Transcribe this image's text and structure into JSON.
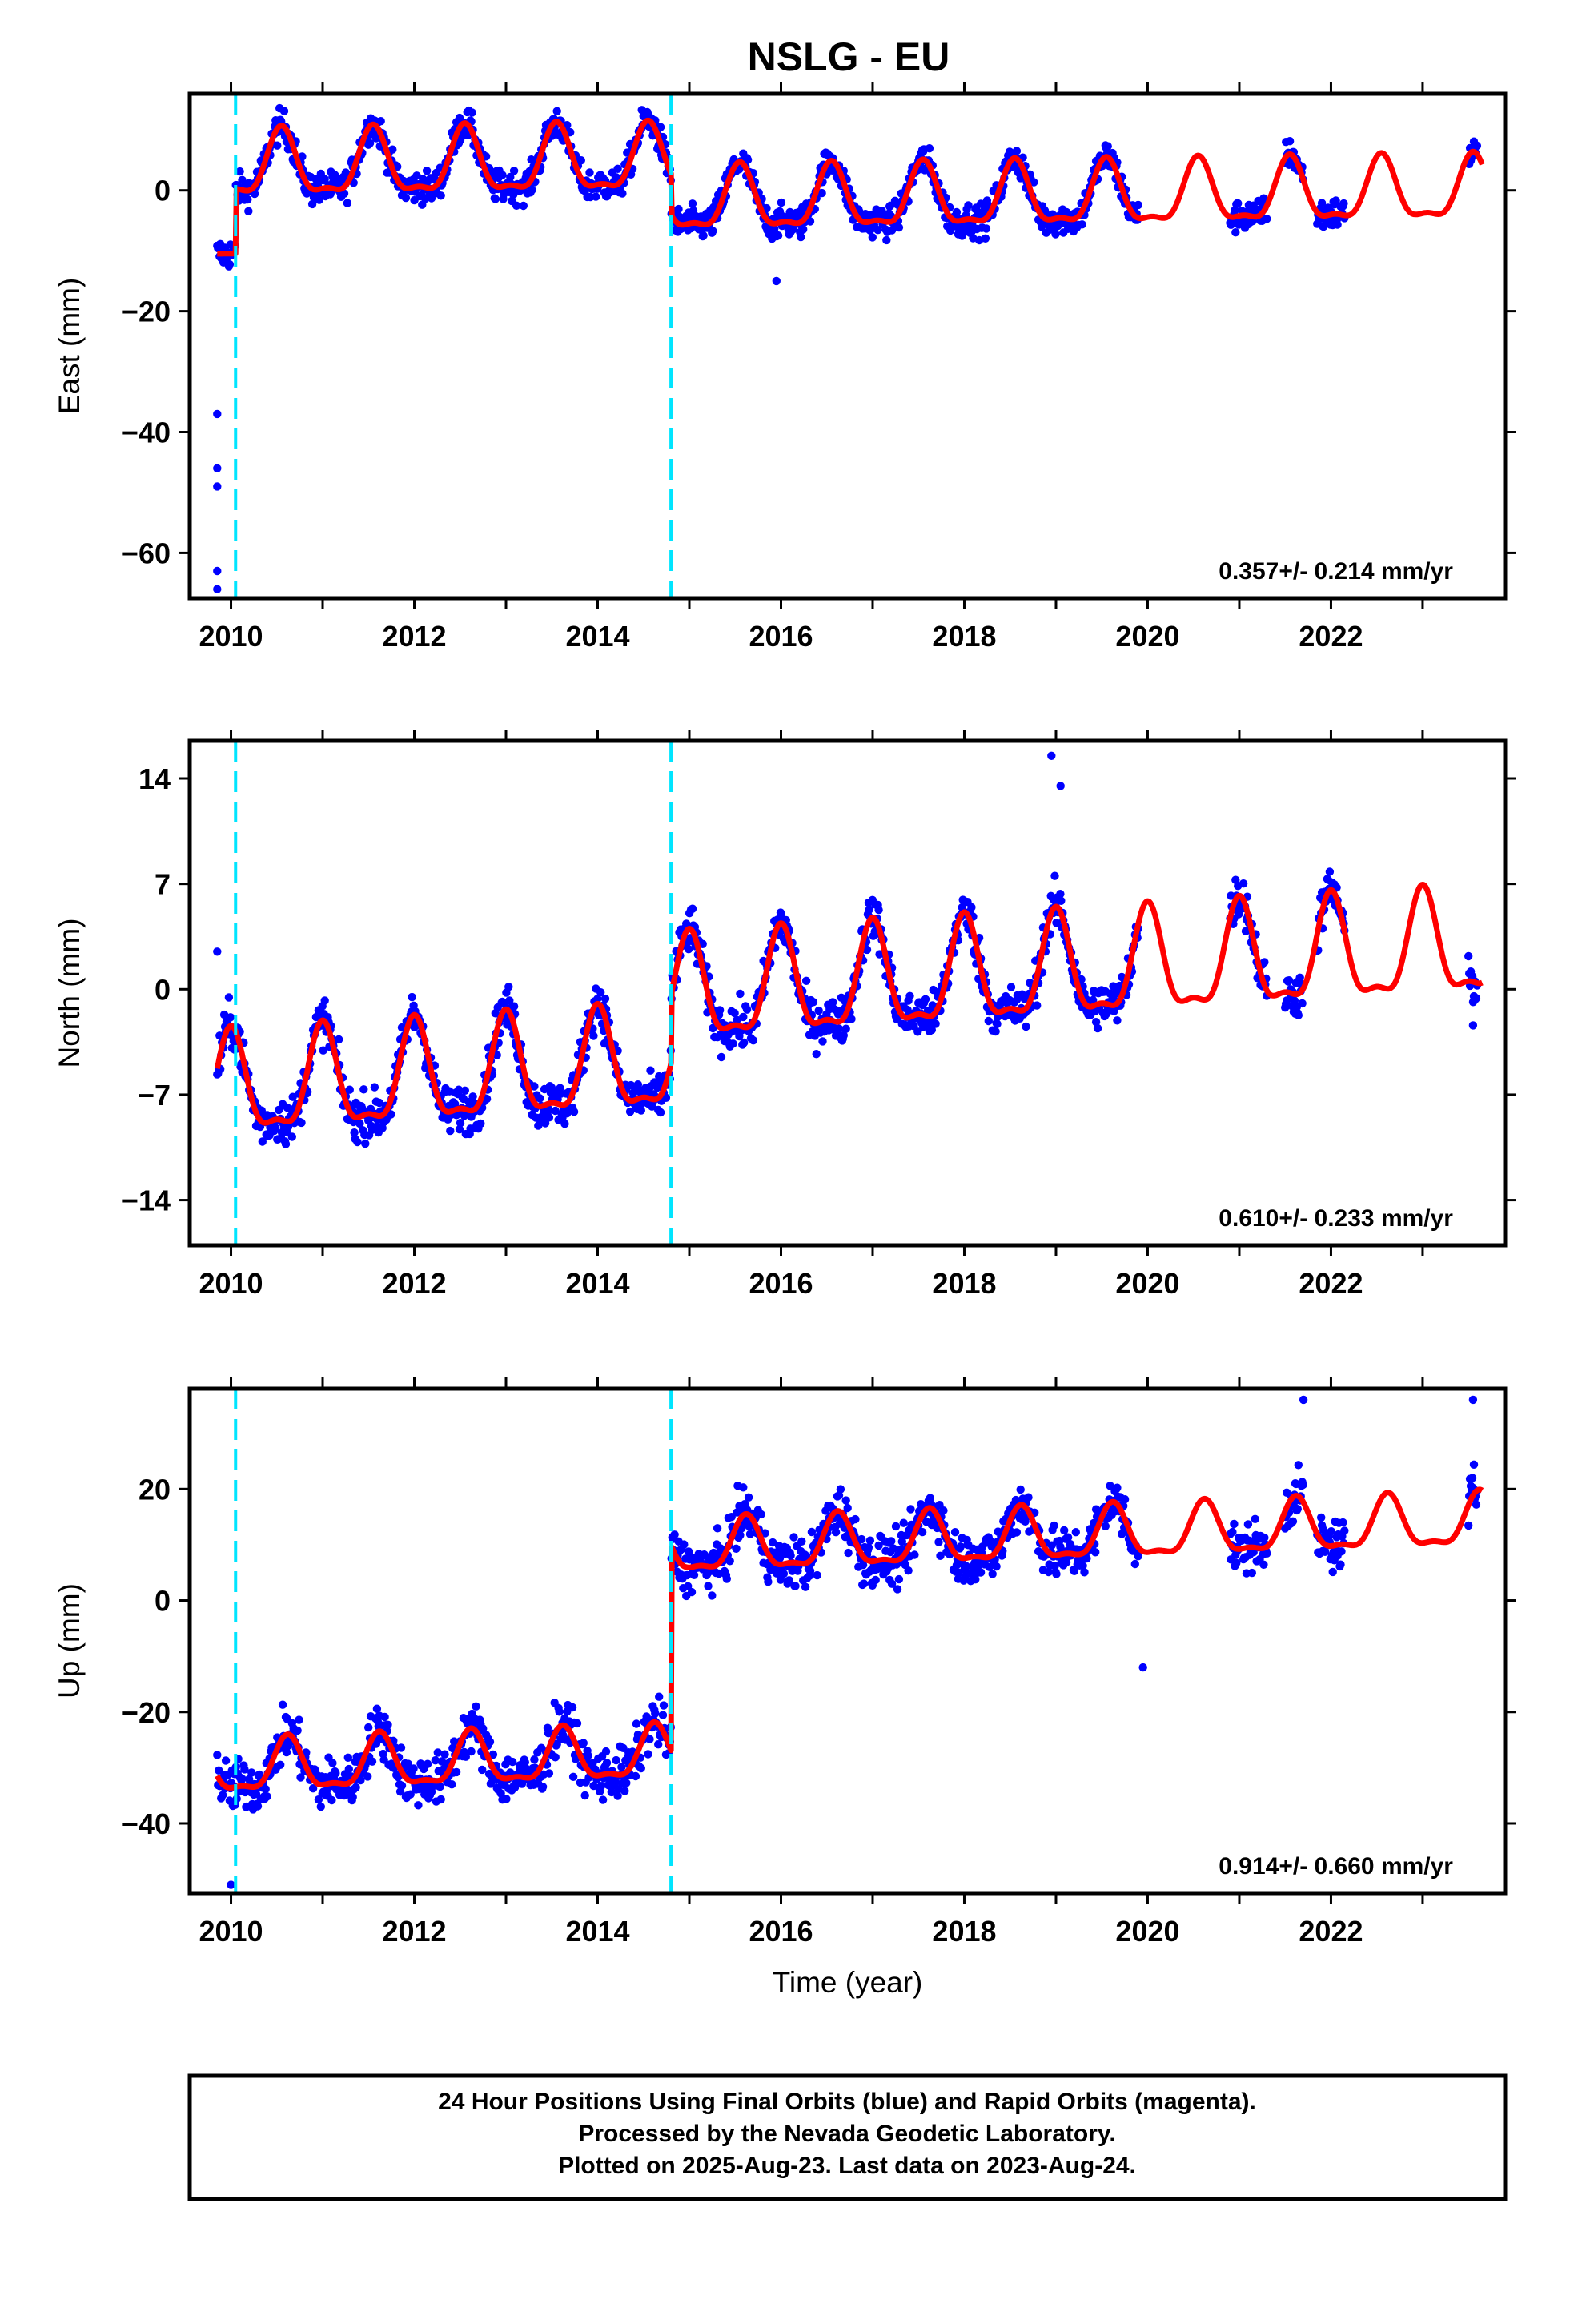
{
  "colors": {
    "final_orbit_points": "#0000ff",
    "model_line": "#ff0000",
    "offset_lines": "#00e5ff",
    "frame": "#000000"
  },
  "chart_data": [
    {
      "type": "scatter",
      "panel": "east",
      "title": "NSLG - EU",
      "xlabel": "",
      "ylabel": "East (mm)",
      "xlim": [
        2009.55,
        2023.9
      ],
      "ylim": [
        -67.5,
        16
      ],
      "yticks": [
        -60,
        -40,
        -20,
        0
      ],
      "xticks": [
        2010,
        2012,
        2014,
        2016,
        2018,
        2020,
        2022
      ],
      "rate_text": "0.357+/- 0.214 mm/yr",
      "offsets": [
        2010.05,
        2014.8
      ],
      "model": {
        "pieces": [
          {
            "start": 2009.85,
            "end": 2010.05,
            "base": -10.5,
            "amp": 0.0
          },
          {
            "start": 2010.05,
            "end": 2014.8,
            "base": 3.6,
            "amp": 5.2
          },
          {
            "start": 2014.8,
            "end": 2023.65,
            "base": -2.2,
            "amp": 5.0
          }
        ],
        "phase_peak": 0.55,
        "trend_mm_per_yr": 0.357
      },
      "data_ranges": [
        [
          2009.85,
          2019.9
        ],
        [
          2020.9,
          2021.3
        ],
        [
          2021.5,
          2021.7
        ],
        [
          2021.85,
          2022.15
        ],
        [
          2023.5,
          2023.6
        ]
      ],
      "scatter_noise": 2.4,
      "outliers": [
        [
          2009.85,
          -37
        ],
        [
          2009.85,
          -46
        ],
        [
          2009.85,
          -49
        ],
        [
          2009.85,
          -63
        ],
        [
          2009.85,
          -66
        ],
        [
          2015.95,
          -15
        ]
      ]
    },
    {
      "type": "scatter",
      "panel": "north",
      "title": "",
      "xlabel": "",
      "ylabel": "North (mm)",
      "xlim": [
        2009.55,
        2023.9
      ],
      "ylim": [
        -17,
        16.5
      ],
      "yticks": [
        -14,
        -7,
        0,
        7,
        14
      ],
      "xticks": [
        2010,
        2012,
        2014,
        2016,
        2018,
        2020,
        2022
      ],
      "rate_text": "0.610+/- 0.233 mm/yr",
      "offsets": [
        2010.05,
        2014.8
      ],
      "model": {
        "pieces": [
          {
            "start": 2009.85,
            "end": 2014.8,
            "base": -6.8,
            "amp": 3.2
          },
          {
            "start": 2014.8,
            "end": 2023.65,
            "base": -0.5,
            "amp": 3.3
          }
        ],
        "phase_peak": 0.0,
        "trend_mm_per_yr": 0.61
      },
      "data_ranges": [
        [
          2009.85,
          2019.9
        ],
        [
          2020.9,
          2021.3
        ],
        [
          2021.5,
          2021.7
        ],
        [
          2021.85,
          2022.15
        ],
        [
          2023.5,
          2023.6
        ]
      ],
      "scatter_noise": 1.4,
      "outliers": [
        [
          2018.95,
          15.5
        ],
        [
          2019.05,
          13.5
        ],
        [
          2023.55,
          -2.4
        ],
        [
          2009.85,
          2.5
        ]
      ]
    },
    {
      "type": "scatter",
      "panel": "up",
      "title": "",
      "xlabel": "Time (year)",
      "ylabel": "Up (mm)",
      "xlim": [
        2009.55,
        2023.9
      ],
      "ylim": [
        -52.5,
        38
      ],
      "yticks": [
        -40,
        -20,
        0,
        20
      ],
      "xticks": [
        2010,
        2012,
        2014,
        2016,
        2018,
        2020,
        2022
      ],
      "rate_text": "0.914+/- 0.660 mm/yr",
      "offsets": [
        2010.05,
        2014.8
      ],
      "model": {
        "pieces": [
          {
            "start": 2009.85,
            "end": 2014.8,
            "base": -30.5,
            "amp": 4.5
          },
          {
            "start": 2014.8,
            "end": 2023.65,
            "base": 9.0,
            "amp": 4.5
          }
        ],
        "phase_peak": 0.62,
        "trend_mm_per_yr": 0.914
      },
      "data_ranges": [
        [
          2009.85,
          2019.9
        ],
        [
          2020.9,
          2021.3
        ],
        [
          2021.5,
          2021.7
        ],
        [
          2021.85,
          2022.15
        ],
        [
          2023.5,
          2023.6
        ]
      ],
      "scatter_noise": 4.2,
      "outliers": [
        [
          2010.0,
          -51
        ],
        [
          2021.7,
          36
        ],
        [
          2023.55,
          36
        ],
        [
          2019.95,
          -12
        ]
      ]
    }
  ],
  "footer": {
    "line1": "24 Hour Positions Using Final Orbits (blue) and Rapid Orbits (magenta).",
    "line2": "Processed by the Nevada Geodetic Laboratory.",
    "line3": "Plotted on 2025-Aug-23. Last data on 2023-Aug-24."
  }
}
